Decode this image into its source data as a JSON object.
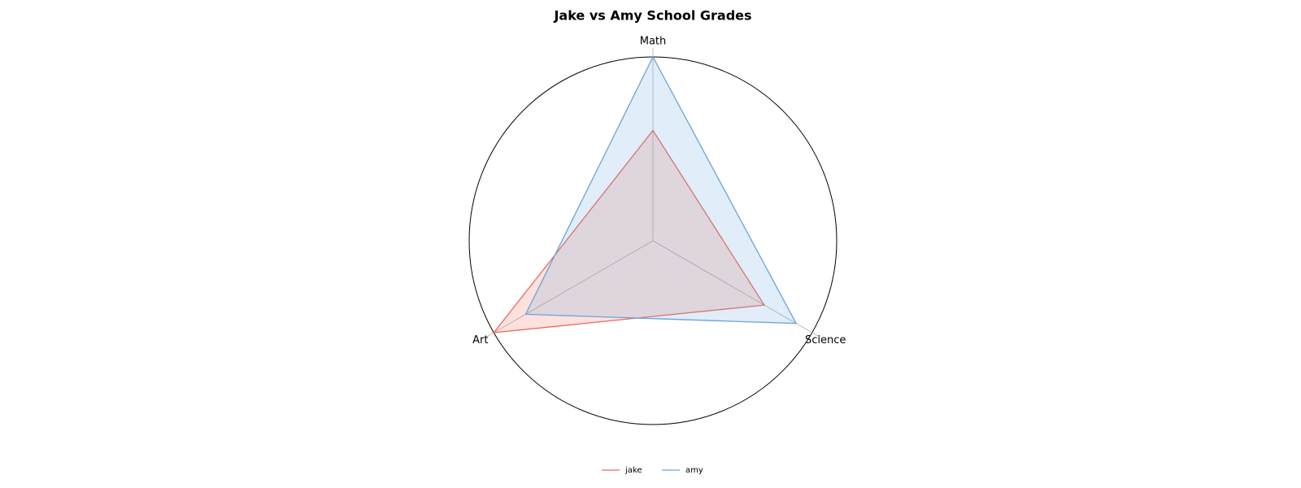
{
  "chart_data": {
    "type": "radar",
    "title": "Jake vs Amy School Grades",
    "categories": [
      "Math",
      "Science",
      "Art"
    ],
    "series": [
      {
        "name": "jake",
        "color": "#f0695a",
        "values": [
          60,
          70,
          100
        ]
      },
      {
        "name": "amy",
        "color": "#6aa4db",
        "values": [
          100,
          90,
          80
        ]
      }
    ],
    "rlim": [
      0,
      100
    ],
    "legend": "bottom"
  }
}
